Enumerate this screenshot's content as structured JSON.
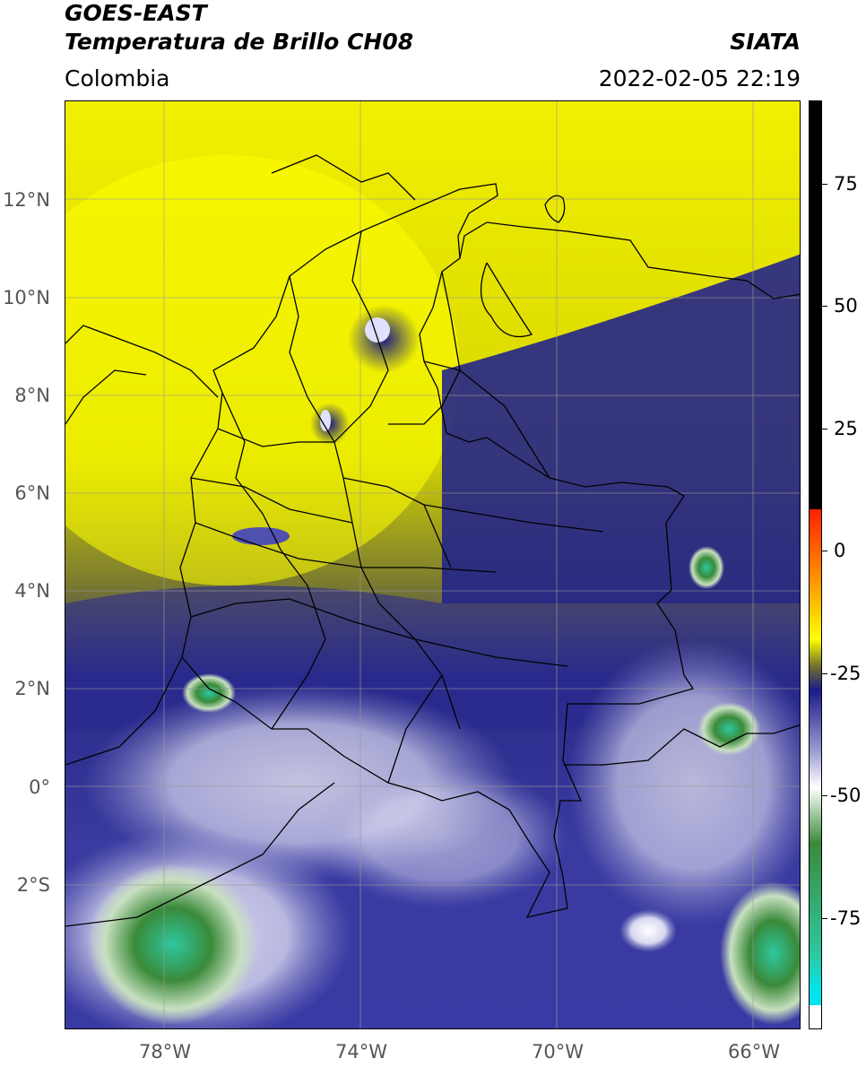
{
  "header": {
    "satellite": "GOES-EAST",
    "product": "Temperatura de Brillo CH08",
    "region": "Colombia",
    "agency": "SIATA",
    "datetime": "2022-02-05 22:19"
  },
  "map": {
    "lat_labels": [
      "12°N",
      "10°N",
      "8°N",
      "6°N",
      "4°N",
      "2°N",
      "0°",
      "2°S"
    ],
    "lon_labels": [
      "78°W",
      "74°W",
      "70°W",
      "66°W"
    ],
    "lat_range": [
      -5,
      14
    ],
    "lon_range": [
      -80,
      -65
    ]
  },
  "colorbar": {
    "ticks": [
      "75",
      "50",
      "25",
      "0",
      "-25",
      "-50",
      "-75"
    ],
    "tick_values": [
      75,
      50,
      25,
      0,
      -25,
      -50,
      -75
    ],
    "range": [
      -95,
      90
    ],
    "colors": {
      "black": "#000000",
      "red": "#ff2000",
      "orange": "#ff9a00",
      "yellow": "#ffff00",
      "olive": "#6e6e2e",
      "navy": "#1a1a8a",
      "lavender": "#9a9ad2",
      "white": "#ffffff",
      "green": "#3a8a3a",
      "teal": "#2ec8a0",
      "cyan": "#00e5ee"
    }
  }
}
